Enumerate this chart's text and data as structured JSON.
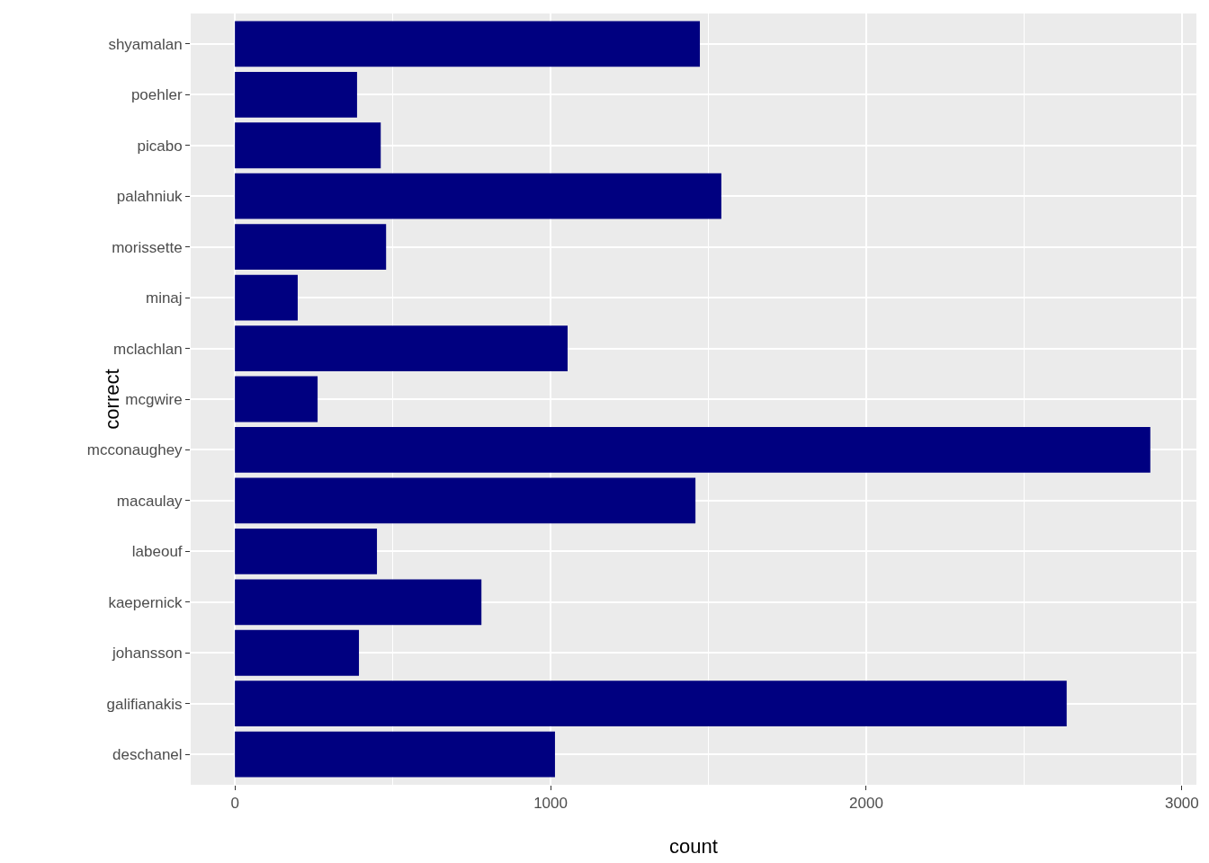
{
  "chart_data": {
    "type": "bar",
    "orientation": "horizontal",
    "xlabel": "count",
    "ylabel": "correct",
    "categories": [
      "shyamalan",
      "poehler",
      "picabo",
      "palahniuk",
      "morissette",
      "minaj",
      "mclachlan",
      "mcgwire",
      "mcconaughey",
      "macaulay",
      "labeouf",
      "kaepernick",
      "johansson",
      "galifianakis",
      "deschanel"
    ],
    "values": [
      1473,
      387,
      462,
      1541,
      479,
      199,
      1054,
      262,
      2900,
      1459,
      450,
      781,
      393,
      2635,
      1014
    ],
    "color": "#000080",
    "xlim": [
      -140,
      3046
    ],
    "xticks": [
      0,
      1000,
      2000,
      3000
    ],
    "grid": true,
    "legend": false
  }
}
